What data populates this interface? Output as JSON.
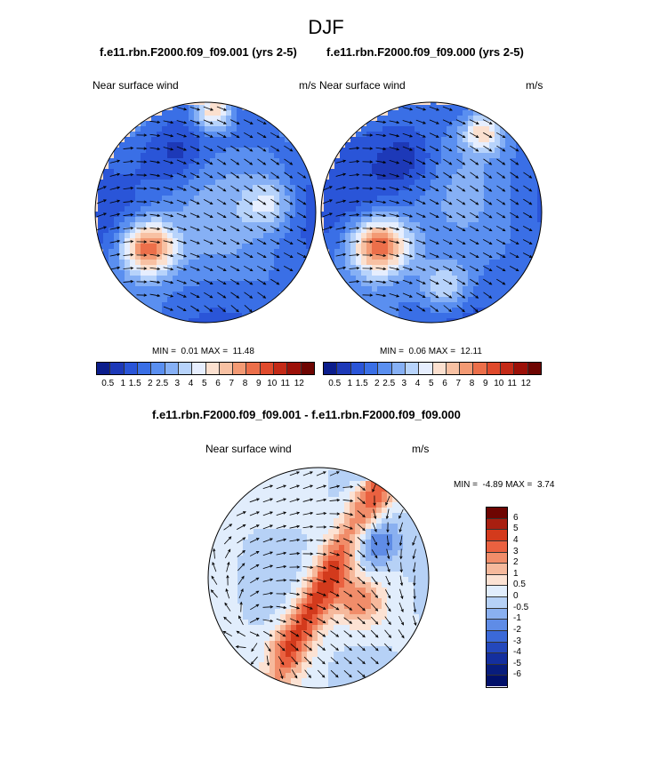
{
  "title": "DJF",
  "colors": {
    "seq": [
      "#0b1d8c",
      "#1d39b8",
      "#2a55d8",
      "#3a6fe6",
      "#5a8ff0",
      "#86b0f5",
      "#b7d3fb",
      "#e6eefe",
      "#fbe0cf",
      "#f8c1a3",
      "#f39a74",
      "#ec6f4a",
      "#e04a2c",
      "#c42a17",
      "#9c1008",
      "#6e0502"
    ],
    "diff": [
      "#6e0502",
      "#a91f10",
      "#d33a1c",
      "#ea6140",
      "#f18d6a",
      "#f6b99c",
      "#fce2d3",
      "#e1edfc",
      "#b6d1f6",
      "#8ab0f0",
      "#5f8ce6",
      "#3b69d8",
      "#2448bc",
      "#142f9e",
      "#081d7d"
    ],
    "arrow": "#000000"
  },
  "chart_data": [
    {
      "type": "heatmap",
      "title": "f.e11.rbn.F2000.f09_f09.001 (yrs 2-5)",
      "variable": "Near surface wind",
      "units": "m/s",
      "min": 0.01,
      "max": 11.48,
      "min_label": "MIN =",
      "min_value": "0.01",
      "max_label": "MAX =",
      "max_value": "11.48",
      "levels": [
        "0.5",
        "1",
        "1.5",
        "2",
        "2.5",
        "3",
        "4",
        "5",
        "6",
        "7",
        "8",
        "9",
        "10",
        "11",
        "12"
      ]
    },
    {
      "type": "heatmap",
      "title": "f.e11.rbn.F2000.f09_f09.000 (yrs 2-5)",
      "variable": "Near surface wind",
      "units": "m/s",
      "min": 0.06,
      "max": 12.11,
      "min_label": "MIN =",
      "min_value": "0.06",
      "max_label": "MAX =",
      "max_value": "12.11",
      "levels": [
        "0.5",
        "1",
        "1.5",
        "2",
        "2.5",
        "3",
        "4",
        "5",
        "6",
        "7",
        "8",
        "9",
        "10",
        "11",
        "12"
      ]
    },
    {
      "type": "heatmap",
      "title": "f.e11.rbn.F2000.f09_f09.001 - f.e11.rbn.F2000.f09_f09.000",
      "variable": "Near surface wind",
      "units": "m/s",
      "min": -4.89,
      "max": 3.74,
      "min_label": "MIN =",
      "min_value": "-4.89",
      "max_label": "MAX =",
      "max_value": "3.74",
      "levels": [
        "6",
        "5",
        "4",
        "3",
        "2",
        "1",
        "0.5",
        "0",
        "-0.5",
        "-1",
        "-2",
        "-3",
        "-4",
        "-5",
        "-6"
      ]
    }
  ]
}
